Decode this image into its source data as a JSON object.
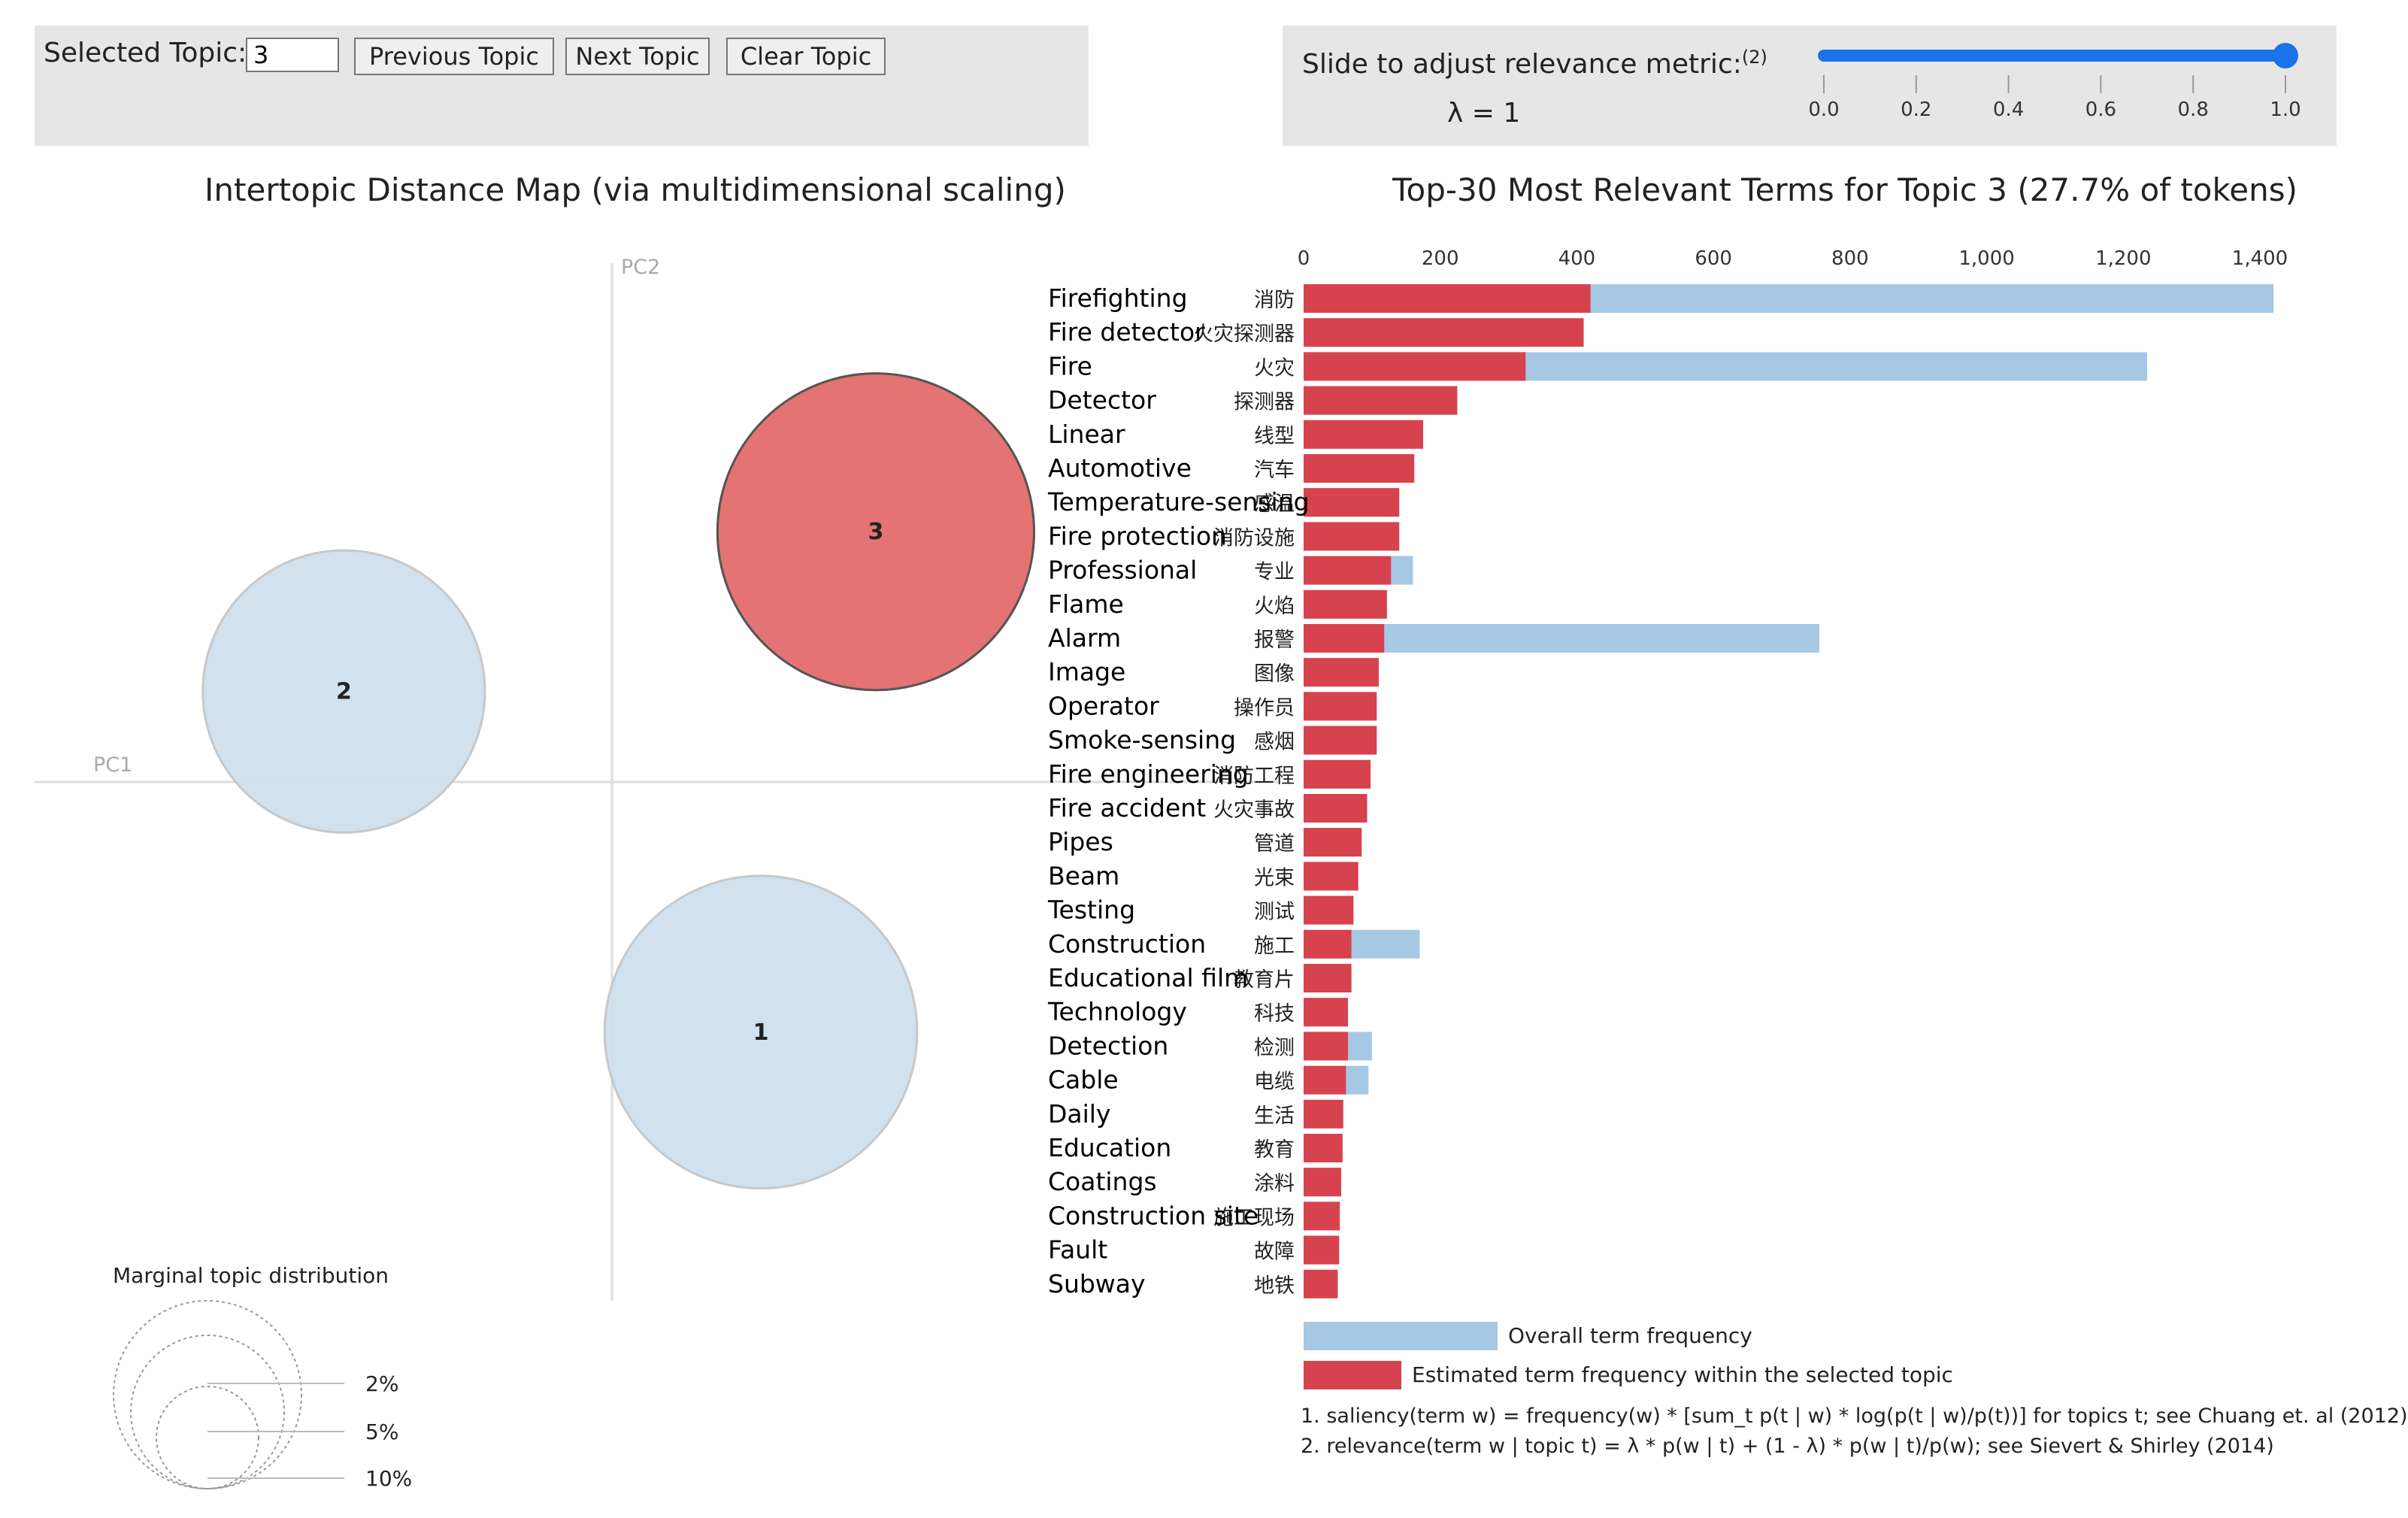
{
  "controls": {
    "selected_topic_label": "Selected Topic:",
    "selected_topic_value": "3",
    "prev_label": "Previous Topic",
    "next_label": "Next Topic",
    "clear_label": "Clear Topic"
  },
  "slider": {
    "label": "Slide to adjust relevance metric:",
    "footnote_ref": "(2)",
    "lambda_text": "λ = 1",
    "value": 1.0,
    "min": 0,
    "max": 1,
    "ticks": [
      "0.0",
      "0.2",
      "0.4",
      "0.6",
      "0.8",
      "1.0"
    ],
    "accent": "#1a73e8"
  },
  "left_title": "Intertopic Distance Map (via multidimensional scaling)",
  "right_title": "Top-30 Most Relevant Terms for Topic 3 (27.7% of tokens)",
  "chart_data": [
    {
      "type": "scatter",
      "title": "Intertopic Distance Map (via multidimensional scaling)",
      "xlabel": "PC1",
      "ylabel": "PC2",
      "topics": [
        {
          "id": "1",
          "pc1": 0.35,
          "pc2": -0.47,
          "share": 27.0,
          "selected": false,
          "color": "#cfe0ee"
        },
        {
          "id": "2",
          "pc1": -0.63,
          "pc2": 0.17,
          "share": 22.0,
          "selected": false,
          "color": "#cfe0ee"
        },
        {
          "id": "3",
          "pc1": 0.62,
          "pc2": 0.47,
          "share": 27.7,
          "selected": true,
          "color": "#e57373"
        }
      ],
      "marginal": {
        "title": "Marginal topic distribution",
        "levels": [
          "2%",
          "5%",
          "10%"
        ]
      }
    },
    {
      "type": "bar",
      "orientation": "horizontal",
      "title": "Top-30 Most Relevant Terms for Topic 3 (27.7% of tokens)",
      "xlim": [
        0,
        1400
      ],
      "xticks": [
        "0",
        "200",
        "400",
        "600",
        "800",
        "1,000",
        "1,200",
        "1,400"
      ],
      "xtick_values": [
        0,
        200,
        400,
        600,
        800,
        1000,
        1200,
        1400
      ],
      "terms_en": [
        "Firefighting",
        "Fire detector",
        "Fire",
        "Detector",
        "Linear",
        "Automotive",
        "Temperature-sensing",
        "Fire protection",
        "Professional",
        "Flame",
        "Alarm",
        "Image",
        "Operator",
        "Smoke-sensing",
        "Fire engineering",
        "Fire accident",
        "Pipes",
        "Beam",
        "Testing",
        "Construction",
        "Educational film",
        "Technology",
        "Detection",
        "Cable",
        "Daily",
        "Education",
        "Coatings",
        "Construction site",
        "Fault",
        "Subway"
      ],
      "terms_zh": [
        "消防",
        "火灾探测器",
        "火灾",
        "探测器",
        "线型",
        "汽车",
        "感温",
        "消防设施",
        "专业",
        "火焰",
        "报警",
        "图像",
        "操作员",
        "感烟",
        "消防工程",
        "火灾事故",
        "管道",
        "光束",
        "测试",
        "施工",
        "教育片",
        "科技",
        "检测",
        "电缆",
        "生活",
        "教育",
        "涂料",
        "施工现场",
        "故障",
        "地铁"
      ],
      "series": [
        {
          "name": "Overall term frequency",
          "color": "#a6c8e3",
          "values": [
            1420,
            410,
            1235,
            225,
            175,
            162,
            140,
            140,
            160,
            122,
            755,
            110,
            107,
            107,
            98,
            93,
            85,
            80,
            73,
            170,
            70,
            65,
            100,
            95,
            58,
            57,
            55,
            53,
            52,
            50
          ]
        },
        {
          "name": "Estimated term frequency within the selected topic",
          "color": "#d6434f",
          "values": [
            420,
            410,
            325,
            225,
            175,
            162,
            140,
            140,
            128,
            122,
            118,
            110,
            107,
            107,
            98,
            93,
            85,
            80,
            73,
            70,
            70,
            65,
            65,
            62,
            58,
            57,
            55,
            53,
            52,
            50
          ]
        }
      ],
      "legend": [
        "Overall term frequency",
        "Estimated term frequency within the selected topic"
      ]
    }
  ],
  "footnotes": [
    "1. saliency(term w) = frequency(w) * [sum_t p(t | w) * log(p(t | w)/p(t))] for topics t; see Chuang et. al (2012)",
    "2. relevance(term w | topic t) = λ * p(w | t) + (1 - λ) * p(w | t)/p(w); see Sievert & Shirley (2014)"
  ]
}
